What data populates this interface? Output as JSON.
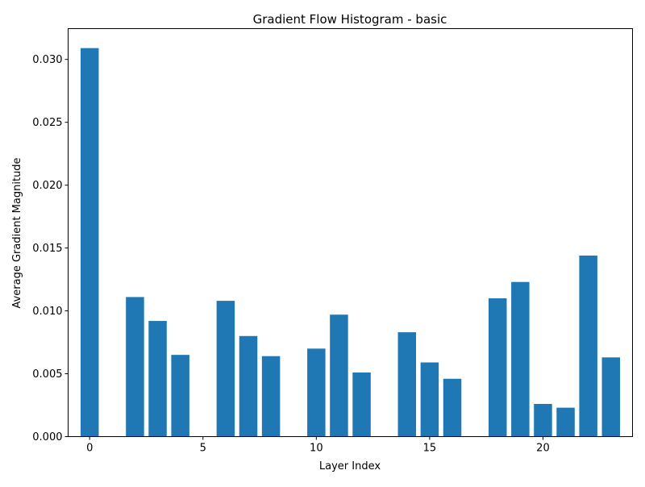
{
  "chart_data": {
    "type": "bar",
    "title": "Gradient Flow Histogram - basic",
    "xlabel": "Layer Index",
    "ylabel": "Average Gradient Magnitude",
    "x": [
      0,
      1,
      2,
      3,
      4,
      5,
      6,
      7,
      8,
      9,
      10,
      11,
      12,
      13,
      14,
      15,
      16,
      17,
      18,
      19,
      20,
      21,
      22,
      23
    ],
    "values": [
      0.0309,
      0,
      0.0111,
      0.0092,
      0.0065,
      0,
      0.0108,
      0.008,
      0.0064,
      0,
      0.007,
      0.0097,
      0.0051,
      0,
      0.0083,
      0.0059,
      0.0046,
      0,
      0.011,
      0.0123,
      0.0026,
      0.0023,
      0.0144,
      0.0063
    ],
    "xlim": [
      -0.95,
      23.95
    ],
    "ylim": [
      0,
      0.03245
    ],
    "xticks": [
      0,
      5,
      10,
      15,
      20
    ],
    "yticks": [
      0.0,
      0.005,
      0.01,
      0.015,
      0.02,
      0.025,
      0.03
    ],
    "ytick_labels": [
      "0.000",
      "0.005",
      "0.010",
      "0.015",
      "0.020",
      "0.025",
      "0.030"
    ],
    "bar_color": "#1f77b4",
    "grid": false,
    "legend": "none"
  }
}
